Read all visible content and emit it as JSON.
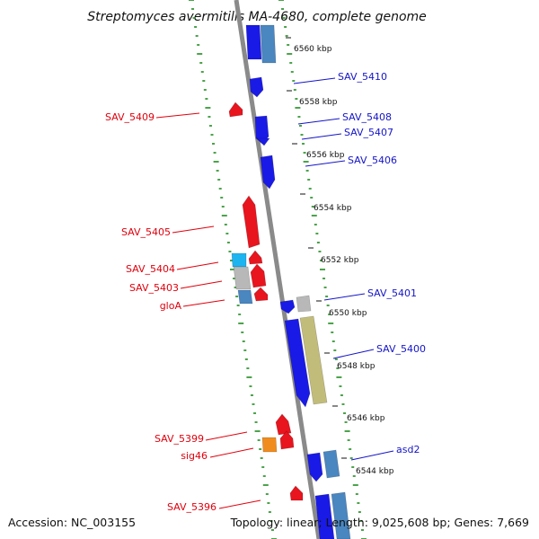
{
  "title": "Streptomyces avermitilis MA-4680, complete genome",
  "footer": {
    "accession": "Accession: NC_003155",
    "topology": "Topology: linear; Length: 9,025,608 bp; Genes: 7,669"
  },
  "colors": {
    "backbone": "#8a8a8a",
    "dots": "#1e8c1e",
    "gene_red": "#e8141e",
    "gene_blue": "#1a1ae6",
    "gene_steel": "#4a86c0",
    "gene_gray": "#b8b8b8",
    "gene_olive": "#c2bc7a",
    "gene_cyan": "#1eb4f0",
    "gene_orange": "#f08c1e",
    "label_red": "#e0000c",
    "label_blue": "#1414c8"
  },
  "scale_ticks": [
    "6560 kbp",
    "6558 kbp",
    "6556 kbp",
    "6554 kbp",
    "6552 kbp",
    "6550 kbp",
    "6548 kbp",
    "6546 kbp",
    "6544 kbp"
  ],
  "left_labels": [
    "SAV_5409",
    "SAV_5405",
    "SAV_5404",
    "SAV_5403",
    "gloA",
    "SAV_5399",
    "sig46",
    "SAV_5396"
  ],
  "right_labels": [
    "SAV_5410",
    "SAV_5408",
    "SAV_5407",
    "SAV_5406",
    "SAV_5401",
    "SAV_5400",
    "asd2"
  ]
}
